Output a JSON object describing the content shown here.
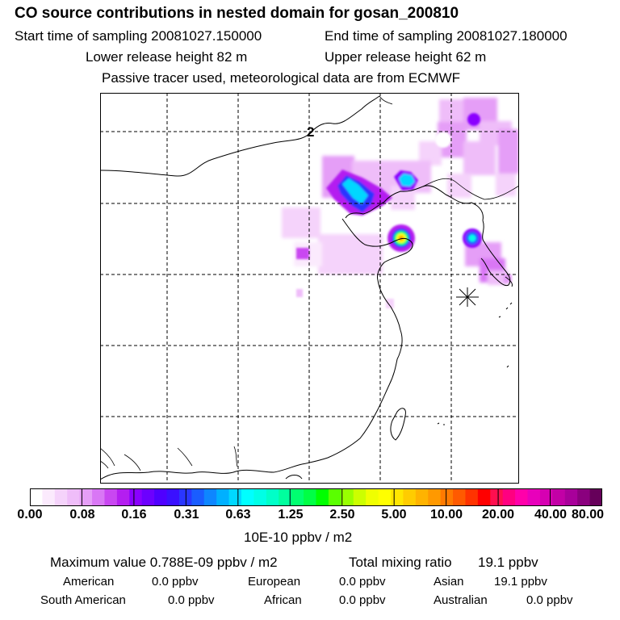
{
  "chart_data": {
    "type": "heatmap",
    "title": "CO  source contributions in nested domain for gosan_200810",
    "start_label": "Start time of sampling 20081027.150000",
    "end_label": "End time of sampling 20081027.180000",
    "lower_label": "Lower release height   82 m",
    "upper_label": "Upper release height   62 m",
    "tracer_label": "Passive tracer used, meteorological data are from ECMWF",
    "grid_marker": "2",
    "colorbar": {
      "ticks": [
        "0.00",
        "0.08",
        "0.16",
        "0.31",
        "0.63",
        "1.25",
        "2.50",
        "5.00",
        "10.00",
        "20.00",
        "40.00",
        "80.00"
      ],
      "unit": "10E-10 ppbv / m2",
      "colors": [
        "#ffffff",
        "#fbeafd",
        "#f5d3fb",
        "#efbdf9",
        "#e59ef7",
        "#d977f5",
        "#c947f1",
        "#b41ef0",
        "#8a00ff",
        "#6c00ff",
        "#4f00ff",
        "#3a10ff",
        "#2a36ff",
        "#1a5dff",
        "#0e86ff",
        "#00b0ff",
        "#00d8ff",
        "#00ffff",
        "#00ffe6",
        "#00ffc8",
        "#00ff9e",
        "#00ff70",
        "#00ff45",
        "#00ff00",
        "#5aff00",
        "#99ff00",
        "#ccff00",
        "#f0ff00",
        "#ffff00",
        "#ffe600",
        "#ffcc00",
        "#ffb300",
        "#ff9900",
        "#ff7a00",
        "#ff5a00",
        "#ff3300",
        "#ff0000",
        "#ff0f4f",
        "#ff0080",
        "#ff00aa",
        "#e800bb",
        "#d600b2",
        "#c200a6",
        "#a8009a",
        "#8a007e",
        "#66005a"
      ]
    },
    "plumes": [
      {
        "id": "beijing-core",
        "values": [
          0.16,
          0.63,
          1.25
        ]
      },
      {
        "id": "shandong-hotspot",
        "values": [
          0.16,
          0.63,
          2.5,
          5.0
        ]
      },
      {
        "id": "seoul-core",
        "values": [
          0.16,
          0.63
        ]
      },
      {
        "id": "manchuria",
        "values": [
          0.08,
          0.16
        ]
      }
    ],
    "max_label": "Maximum value  0.788E-09 ppbv / m2",
    "total_label": "Total mixing ratio",
    "total_value": "19.1 ppbv",
    "regions": [
      {
        "name": "American",
        "value": "0.0 ppbv"
      },
      {
        "name": "European",
        "value": "0.0 ppbv"
      },
      {
        "name": "Asian",
        "value": "19.1 ppbv"
      },
      {
        "name": "South American",
        "value": "0.0 ppbv"
      },
      {
        "name": "African",
        "value": "0.0 ppbv"
      },
      {
        "name": "Australian",
        "value": "0.0 ppbv"
      }
    ],
    "receptor_marker": "star"
  }
}
